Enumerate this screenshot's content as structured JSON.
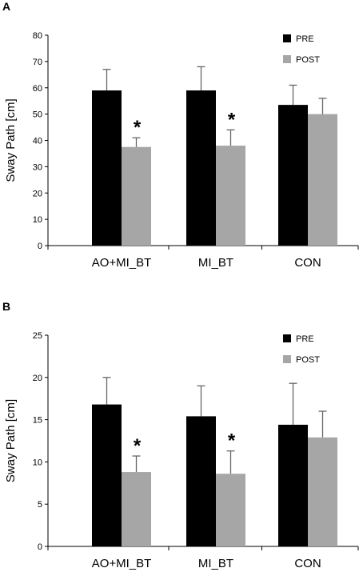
{
  "chart_data": [
    {
      "type": "bar",
      "panel_label": "A",
      "ylabel": "Sway Path [cm]",
      "ylim": [
        0,
        80
      ],
      "yticks": [
        0,
        10,
        20,
        30,
        40,
        50,
        60,
        70,
        80
      ],
      "categories": [
        "AO+MI_BT",
        "MI_BT",
        "CON"
      ],
      "series": [
        {
          "name": "PRE",
          "color": "#000000",
          "values": [
            59,
            59,
            53.5
          ],
          "errors": [
            8,
            9,
            7.5
          ]
        },
        {
          "name": "POST",
          "color": "#a6a6a6",
          "values": [
            37.5,
            38,
            50
          ],
          "errors": [
            3.5,
            6,
            6
          ]
        }
      ],
      "annotations": [
        {
          "category": 0,
          "series": 1,
          "text": "*"
        },
        {
          "category": 1,
          "series": 1,
          "text": "*"
        }
      ],
      "legend": "top-right",
      "grid": false
    },
    {
      "type": "bar",
      "panel_label": "B",
      "ylabel": "Sway Path [cm]",
      "ylim": [
        0,
        25
      ],
      "yticks": [
        0,
        5,
        10,
        15,
        20,
        25
      ],
      "categories": [
        "AO+MI_BT",
        "MI_BT",
        "CON"
      ],
      "series": [
        {
          "name": "PRE",
          "color": "#000000",
          "values": [
            16.8,
            15.4,
            14.4
          ],
          "errors": [
            3.2,
            3.6,
            4.9
          ]
        },
        {
          "name": "POST",
          "color": "#a6a6a6",
          "values": [
            8.8,
            8.6,
            12.9
          ],
          "errors": [
            1.9,
            2.7,
            3.1
          ]
        }
      ],
      "annotations": [
        {
          "category": 0,
          "series": 1,
          "text": "*"
        },
        {
          "category": 1,
          "series": 1,
          "text": "*"
        }
      ],
      "legend": "top-right",
      "grid": false
    }
  ]
}
